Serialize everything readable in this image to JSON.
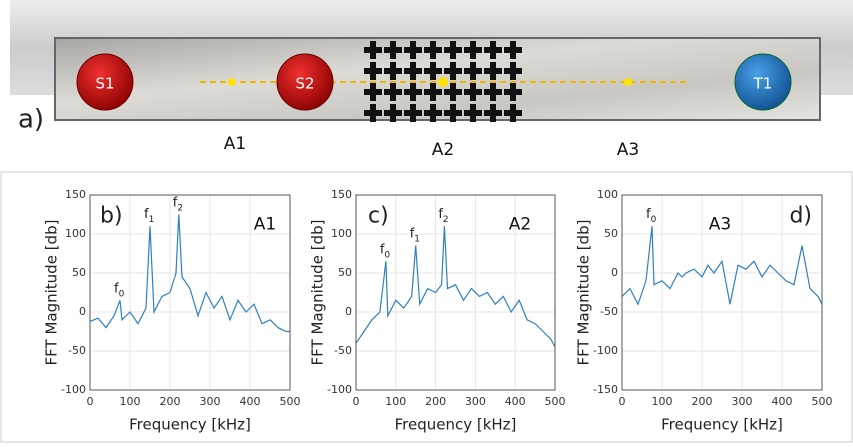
{
  "diagram": {
    "panel_label": "a)",
    "nodes": [
      "S1",
      "S2",
      "T1"
    ],
    "regions": [
      "A1",
      "A2",
      "A3"
    ]
  },
  "chart_data": [
    {
      "type": "line",
      "panel_label": "b)",
      "region_label": "A1",
      "x_label": "Frequency [kHz]",
      "y_label": "FFT Magnitude [db]",
      "xlim": [
        0,
        500
      ],
      "xticks": [
        0,
        100,
        200,
        300,
        400,
        500
      ],
      "ylim": [
        -100,
        150
      ],
      "yticks": [
        -100,
        -50,
        0,
        50,
        100,
        150
      ],
      "grid": true,
      "annotations": [
        {
          "label": "f",
          "sub": "0",
          "x": 75
        },
        {
          "label": "f",
          "sub": "1",
          "x": 150
        },
        {
          "label": "f",
          "sub": "2",
          "x": 222
        }
      ],
      "series": [
        {
          "color": "#2f7fc1",
          "x": [
            0,
            20,
            40,
            60,
            75,
            80,
            100,
            120,
            140,
            150,
            160,
            180,
            200,
            215,
            222,
            230,
            250,
            270,
            290,
            310,
            330,
            350,
            370,
            390,
            410,
            430,
            450,
            470,
            490,
            500
          ],
          "values": [
            -12,
            -8,
            -20,
            -5,
            15,
            -10,
            0,
            -15,
            5,
            110,
            0,
            20,
            25,
            50,
            125,
            45,
            30,
            -5,
            25,
            5,
            20,
            -10,
            15,
            0,
            10,
            -15,
            -10,
            -20,
            -25,
            -25
          ]
        }
      ]
    },
    {
      "type": "line",
      "panel_label": "c)",
      "region_label": "A2",
      "x_label": "Frequency [kHz]",
      "y_label": "FFT Magnitude [db]",
      "xlim": [
        0,
        500
      ],
      "xticks": [
        0,
        100,
        200,
        300,
        400,
        500
      ],
      "ylim": [
        -100,
        150
      ],
      "yticks": [
        -100,
        -50,
        0,
        50,
        100,
        150
      ],
      "grid": true,
      "annotations": [
        {
          "label": "f",
          "sub": "0",
          "x": 75
        },
        {
          "label": "f",
          "sub": "1",
          "x": 150
        },
        {
          "label": "f",
          "sub": "2",
          "x": 222
        }
      ],
      "series": [
        {
          "color": "#2f7fc1",
          "x": [
            0,
            20,
            40,
            60,
            75,
            80,
            100,
            120,
            140,
            150,
            160,
            180,
            200,
            215,
            222,
            230,
            250,
            270,
            290,
            310,
            330,
            350,
            370,
            390,
            410,
            430,
            450,
            470,
            490,
            500
          ],
          "values": [
            -40,
            -25,
            -10,
            0,
            65,
            -5,
            15,
            5,
            20,
            85,
            10,
            30,
            25,
            35,
            110,
            30,
            35,
            15,
            30,
            20,
            25,
            10,
            20,
            0,
            15,
            -10,
            -15,
            -25,
            -35,
            -45
          ]
        }
      ]
    },
    {
      "type": "line",
      "panel_label": "d)",
      "region_label": "A3",
      "x_label": "Frequency [kHz]",
      "y_label": "FFT Magnitude [db]",
      "xlim": [
        0,
        500
      ],
      "xticks": [
        0,
        100,
        200,
        300,
        400,
        500
      ],
      "ylim": [
        -150,
        100
      ],
      "yticks": [
        -150,
        -100,
        -50,
        0,
        50,
        100
      ],
      "grid": true,
      "annotations": [
        {
          "label": "f",
          "sub": "0",
          "x": 75
        }
      ],
      "series": [
        {
          "color": "#2f7fc1",
          "x": [
            0,
            20,
            40,
            60,
            75,
            80,
            100,
            120,
            140,
            150,
            160,
            180,
            200,
            215,
            222,
            230,
            250,
            270,
            290,
            310,
            330,
            350,
            370,
            390,
            410,
            430,
            450,
            470,
            490,
            500
          ],
          "values": [
            -30,
            -20,
            -40,
            -10,
            60,
            -15,
            -10,
            -20,
            0,
            -5,
            0,
            5,
            -5,
            10,
            5,
            0,
            15,
            -40,
            10,
            5,
            15,
            -5,
            10,
            0,
            -10,
            -15,
            35,
            -20,
            -30,
            -40
          ]
        }
      ]
    }
  ]
}
